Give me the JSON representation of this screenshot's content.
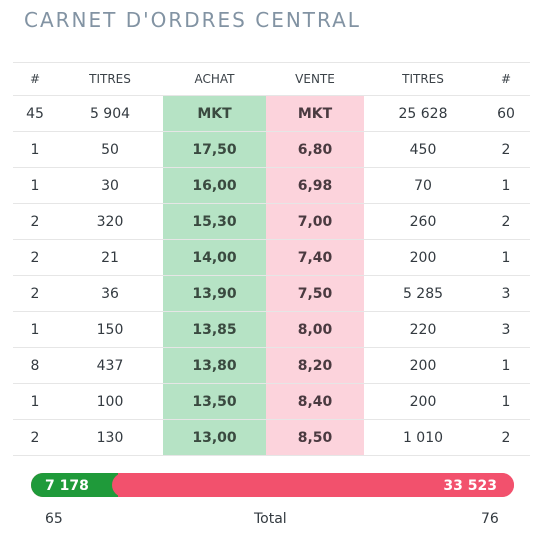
{
  "title": "CARNET D'ORDRES CENTRAL",
  "columns": [
    "#",
    "TITRES",
    "ACHAT",
    "VENTE",
    "TITRES",
    "#"
  ],
  "rows": [
    {
      "buy_count": "45",
      "buy_qty": "5 904",
      "buy_price": "MKT",
      "sell_price": "MKT",
      "sell_qty": "25 628",
      "sell_count": "60"
    },
    {
      "buy_count": "1",
      "buy_qty": "50",
      "buy_price": "17,50",
      "sell_price": "6,80",
      "sell_qty": "450",
      "sell_count": "2"
    },
    {
      "buy_count": "1",
      "buy_qty": "30",
      "buy_price": "16,00",
      "sell_price": "6,98",
      "sell_qty": "70",
      "sell_count": "1"
    },
    {
      "buy_count": "2",
      "buy_qty": "320",
      "buy_price": "15,30",
      "sell_price": "7,00",
      "sell_qty": "260",
      "sell_count": "2"
    },
    {
      "buy_count": "2",
      "buy_qty": "21",
      "buy_price": "14,00",
      "sell_price": "7,40",
      "sell_qty": "200",
      "sell_count": "1"
    },
    {
      "buy_count": "2",
      "buy_qty": "36",
      "buy_price": "13,90",
      "sell_price": "7,50",
      "sell_qty": "5 285",
      "sell_count": "3"
    },
    {
      "buy_count": "1",
      "buy_qty": "150",
      "buy_price": "13,85",
      "sell_price": "8,00",
      "sell_qty": "220",
      "sell_count": "3"
    },
    {
      "buy_count": "8",
      "buy_qty": "437",
      "buy_price": "13,80",
      "sell_price": "8,20",
      "sell_qty": "200",
      "sell_count": "1"
    },
    {
      "buy_count": "1",
      "buy_qty": "100",
      "buy_price": "13,50",
      "sell_price": "8,40",
      "sell_qty": "200",
      "sell_count": "1"
    },
    {
      "buy_count": "2",
      "buy_qty": "130",
      "buy_price": "13,00",
      "sell_price": "8,50",
      "sell_qty": "1 010",
      "sell_count": "2"
    }
  ],
  "summary": {
    "buy_total_qty": "7 178",
    "sell_total_qty": "33 523",
    "buy_share": 0.18,
    "buy_total_count": "65",
    "total_label": "Total",
    "sell_total_count": "76"
  },
  "colors": {
    "title": "#8293a3",
    "buy_cell": "#b6e3c5",
    "sell_cell": "#fcd3dc",
    "buy_bar": "#1f9a3a",
    "sell_bar": "#f2516d"
  }
}
